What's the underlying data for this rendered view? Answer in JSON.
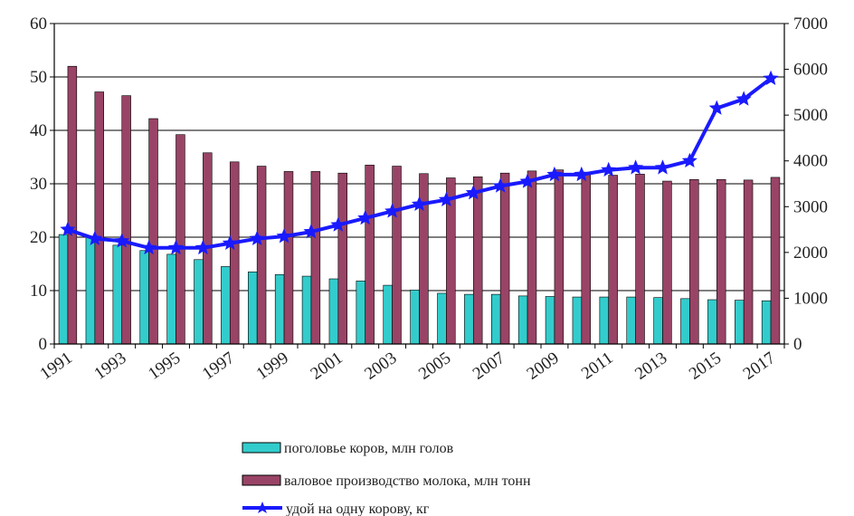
{
  "chart_data": {
    "type": "bar",
    "title": "",
    "xlabel": "",
    "ylabel": "",
    "categories": [
      "1991",
      "1992",
      "1993",
      "1994",
      "1995",
      "1996",
      "1997",
      "1998",
      "1999",
      "2000",
      "2001",
      "2002",
      "2003",
      "2004",
      "2005",
      "2006",
      "2007",
      "2008",
      "2009",
      "2010",
      "2011",
      "2012",
      "2013",
      "2014",
      "2015",
      "2016",
      "2017"
    ],
    "x_tick_labels": [
      "1991",
      "1993",
      "1995",
      "1997",
      "1999",
      "2001",
      "2003",
      "2005",
      "2007",
      "2009",
      "2011",
      "2013",
      "2015",
      "2017"
    ],
    "ylim": [
      0,
      60
    ],
    "y_ticks": [
      0,
      10,
      20,
      30,
      40,
      50,
      60
    ],
    "y2lim": [
      0,
      7000
    ],
    "y2_ticks": [
      0,
      1000,
      2000,
      3000,
      4000,
      5000,
      6000,
      7000
    ],
    "grid": true,
    "legend_position": "bottom",
    "series": [
      {
        "name": "поголовье коров, млн голов",
        "type": "bar",
        "axis": "left",
        "color": "#33cccc",
        "values": [
          20.5,
          20.2,
          18.5,
          17.5,
          16.8,
          15.8,
          14.5,
          13.5,
          13.0,
          12.7,
          12.2,
          11.8,
          11.0,
          10.1,
          9.5,
          9.3,
          9.3,
          9.0,
          8.9,
          8.8,
          8.8,
          8.8,
          8.7,
          8.5,
          8.3,
          8.2,
          8.1
        ]
      },
      {
        "name": "валовое производство молока, млн тонн",
        "type": "bar",
        "axis": "left",
        "color": "#994466",
        "values": [
          52.0,
          47.2,
          46.5,
          42.2,
          39.2,
          35.8,
          34.1,
          33.3,
          32.3,
          32.3,
          32.0,
          33.5,
          33.3,
          31.9,
          31.1,
          31.3,
          32.0,
          32.4,
          32.6,
          31.8,
          31.6,
          31.8,
          30.5,
          30.8,
          30.8,
          30.7,
          31.2
        ]
      },
      {
        "name": "удой на одну корову, кг",
        "type": "line",
        "axis": "right",
        "color": "#1a1aff",
        "values": [
          2500,
          2300,
          2250,
          2100,
          2100,
          2100,
          2200,
          2300,
          2350,
          2450,
          2600,
          2750,
          2900,
          3050,
          3150,
          3300,
          3450,
          3550,
          3700,
          3700,
          3800,
          3850,
          3850,
          4000,
          5150,
          5350,
          5800
        ]
      }
    ]
  }
}
